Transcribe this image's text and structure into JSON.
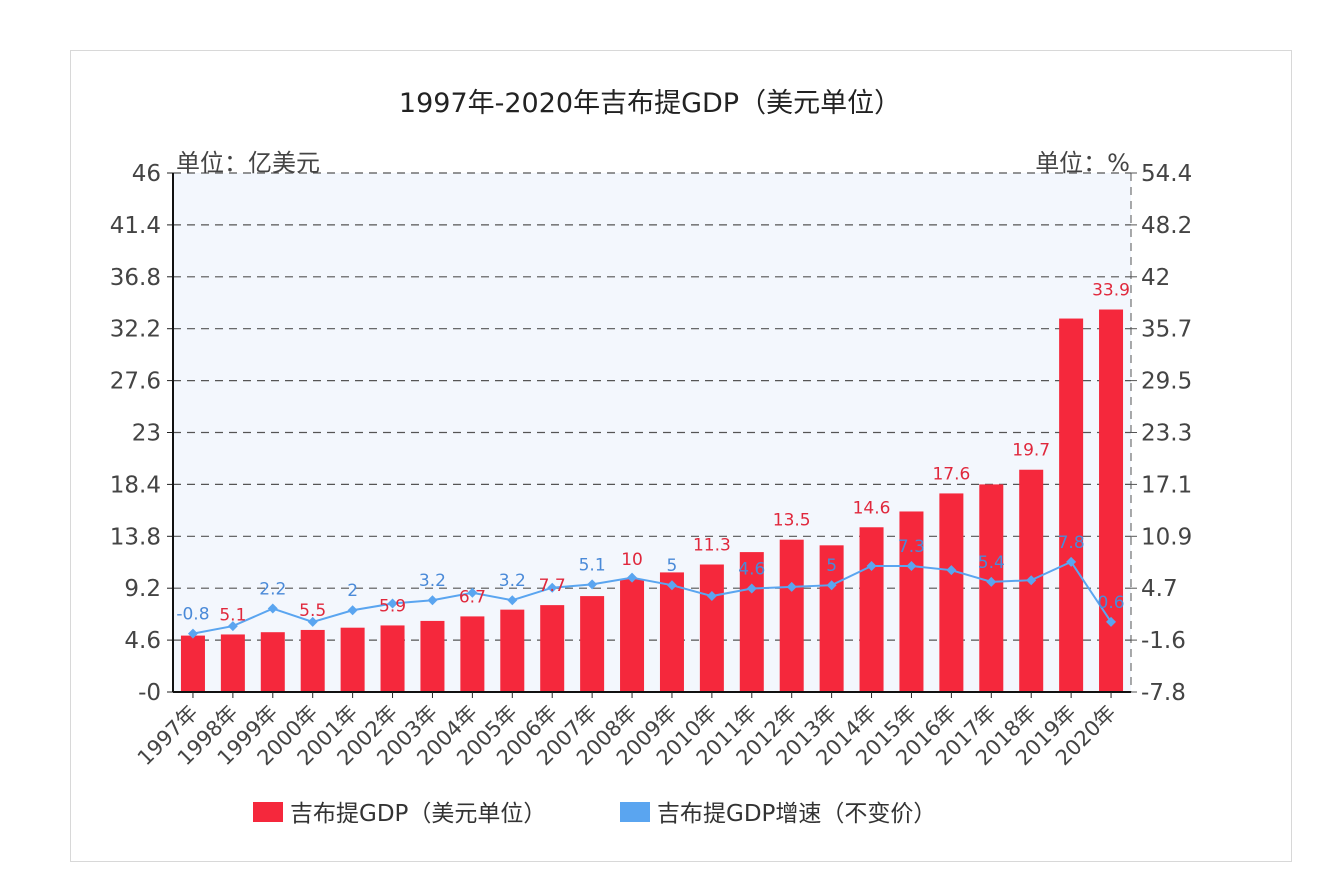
{
  "chart_data": {
    "type": "bar+line",
    "title": "1997年-2020年吉布提GDP（美元单位）",
    "left_unit": "单位：亿美元",
    "right_unit": "单位：%",
    "categories": [
      "1997年",
      "1998年",
      "1999年",
      "2000年",
      "2001年",
      "2002年",
      "2003年",
      "2004年",
      "2005年",
      "2006年",
      "2007年",
      "2008年",
      "2009年",
      "2010年",
      "2011年",
      "2012年",
      "2013年",
      "2014年",
      "2015年",
      "2016年",
      "2017年",
      "2018年",
      "2019年",
      "2020年"
    ],
    "left_ticks": [
      "-0",
      "4.6",
      "9.2",
      "13.8",
      "18.4",
      "23",
      "27.6",
      "32.2",
      "36.8",
      "41.4",
      "46"
    ],
    "right_ticks": [
      "-7.8",
      "-1.6",
      "4.7",
      "10.9",
      "17.1",
      "23.3",
      "29.5",
      "35.7",
      "42",
      "48.2",
      "54.4"
    ],
    "ylim_left": [
      0,
      46
    ],
    "ylim_right": [
      -7.8,
      54.4
    ],
    "grid": true,
    "legend_position": "bottom",
    "series": [
      {
        "name": "吉布提GDP（美元单位）",
        "type": "bar",
        "axis": "left",
        "color": "#f5283c",
        "values": [
          5.0,
          5.1,
          5.3,
          5.5,
          5.7,
          5.9,
          6.3,
          6.7,
          7.3,
          7.7,
          8.5,
          10,
          10.6,
          11.3,
          12.4,
          13.5,
          13.0,
          14.6,
          16.0,
          17.6,
          18.4,
          19.7,
          33.1,
          33.9
        ],
        "labels": [
          "",
          "5.1",
          "",
          "5.5",
          "",
          "5.9",
          "",
          "6.7",
          "",
          "7.7",
          "",
          "10",
          "",
          "11.3",
          "",
          "13.5",
          "",
          "14.6",
          "",
          "17.6",
          "",
          "19.7",
          "",
          "33.9"
        ]
      },
      {
        "name": "吉布提GDP增速（不变价）",
        "type": "line",
        "axis": "right",
        "color": "#5aa5f0",
        "values": [
          -0.8,
          0.1,
          2.2,
          0.6,
          2,
          2.8,
          3.2,
          4.1,
          3.2,
          4.7,
          5.1,
          5.9,
          5,
          3.7,
          4.6,
          4.8,
          5,
          7.3,
          7.3,
          6.8,
          5.4,
          5.6,
          7.8,
          0.6
        ],
        "labels": [
          "-0.8",
          "",
          "2.2",
          "",
          "2",
          "",
          "3.2",
          "",
          "3.2",
          "",
          "5.1",
          "",
          "5",
          "",
          "4.6",
          "",
          "5",
          "",
          "7.3",
          "",
          "5.4",
          "",
          "7.8",
          "0.6"
        ]
      }
    ]
  }
}
